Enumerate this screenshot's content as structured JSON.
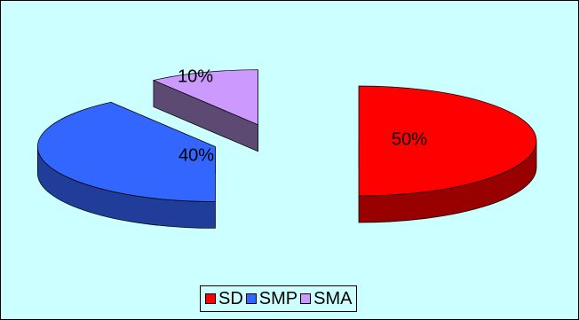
{
  "chart_data": {
    "type": "pie",
    "categories": [
      "SD",
      "SMP",
      "SMA"
    ],
    "values": [
      50,
      40,
      10
    ],
    "labels": [
      "50%",
      "40%",
      "10%"
    ],
    "colors": [
      "#ff0000",
      "#3366ff",
      "#cc99ff"
    ],
    "side_colors": [
      "#990000",
      "#1f3d99",
      "#5c4a73"
    ],
    "exploded": true,
    "three_d": true,
    "legend_position": "bottom",
    "background": "#ccffff"
  }
}
